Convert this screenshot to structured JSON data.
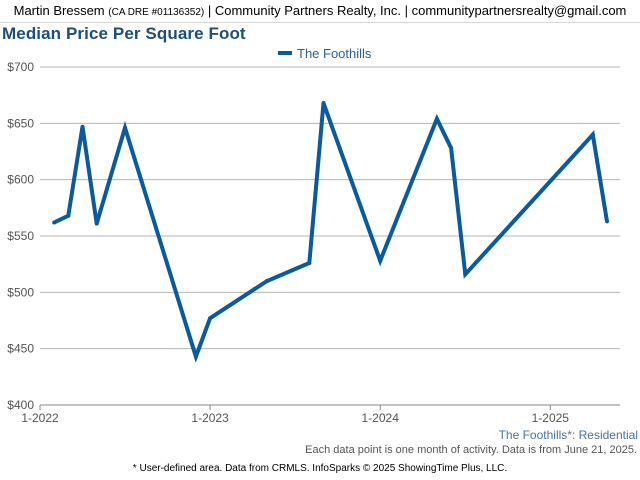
{
  "header": {
    "agent_name": "Martin Bressem",
    "agent_dre": "(CA DRE #01136352)",
    "company_and_email": "| Community Partners Realty, Inc. | communitypartnersrealty@gmail.com"
  },
  "footer": {
    "activity_note": "Each data point is one month of activity. Data is from June 21, 2025.",
    "source_note": "* User-defined area. Data from CRMLS. InfoSparks © 2025 ShowingTime Plus, LLC."
  },
  "chart_data": {
    "type": "line",
    "title": "Median Price Per Square Foot",
    "subtitle": "The Foothills*: Residential",
    "legend_position": "top-center",
    "grid": true,
    "ylim": [
      400,
      700
    ],
    "yticks": [
      400,
      450,
      500,
      550,
      600,
      650,
      700
    ],
    "ytick_labels": [
      "$400",
      "$450",
      "$500",
      "$550",
      "$600",
      "$650",
      "$700"
    ],
    "xlim": [
      "2022-01",
      "2025-05"
    ],
    "xticks": [
      "2022-01",
      "2023-01",
      "2024-01",
      "2025-01"
    ],
    "xtick_labels": [
      "1-2022",
      "1-2023",
      "1-2024",
      "1-2025"
    ],
    "colors": {
      "series": "#0a5a9e",
      "grid": "#b5b5b5",
      "axis_text": "#555555"
    },
    "series": [
      {
        "name": "The Foothills",
        "points": [
          {
            "x": "2022-02",
            "y": 562
          },
          {
            "x": "2022-03",
            "y": 568
          },
          {
            "x": "2022-04",
            "y": 647
          },
          {
            "x": "2022-05",
            "y": 561
          },
          {
            "x": "2022-07",
            "y": 646
          },
          {
            "x": "2022-12",
            "y": 443
          },
          {
            "x": "2023-01",
            "y": 477
          },
          {
            "x": "2023-05",
            "y": 510
          },
          {
            "x": "2023-08",
            "y": 526
          },
          {
            "x": "2023-09",
            "y": 668
          },
          {
            "x": "2024-01",
            "y": 528
          },
          {
            "x": "2024-05",
            "y": 654
          },
          {
            "x": "2024-06",
            "y": 628
          },
          {
            "x": "2024-07",
            "y": 516
          },
          {
            "x": "2025-04",
            "y": 640
          },
          {
            "x": "2025-05",
            "y": 563
          }
        ]
      }
    ]
  }
}
